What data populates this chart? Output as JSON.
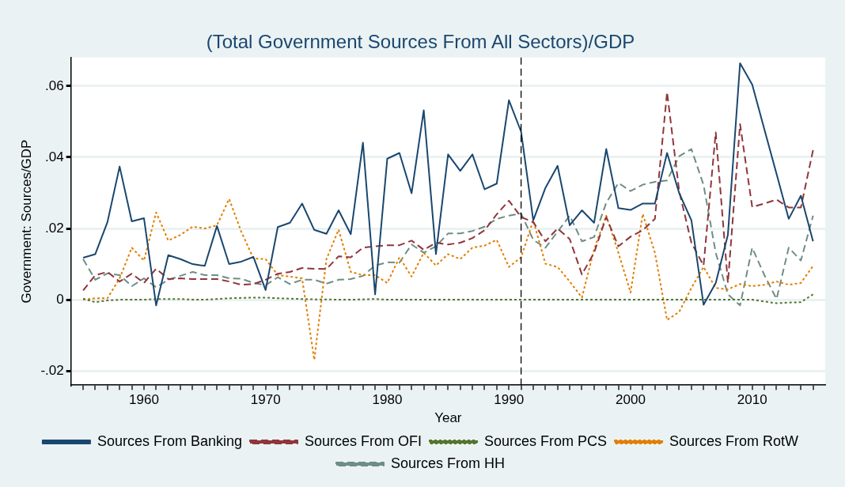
{
  "chart_data": {
    "type": "line",
    "title": "(Total Government Sources From All Sectors)/GDP",
    "xlabel": "Year",
    "ylabel": "Government: Sources/GDP",
    "x": [
      1955,
      1956,
      1957,
      1958,
      1959,
      1960,
      1961,
      1962,
      1963,
      1964,
      1965,
      1966,
      1967,
      1968,
      1969,
      1970,
      1971,
      1972,
      1973,
      1974,
      1975,
      1976,
      1977,
      1978,
      1979,
      1980,
      1981,
      1982,
      1983,
      1984,
      1985,
      1986,
      1987,
      1988,
      1989,
      1990,
      1991,
      1992,
      1993,
      1994,
      1995,
      1996,
      1997,
      1998,
      1999,
      2000,
      2001,
      2002,
      2003,
      2004,
      2005,
      2006,
      2007,
      2008,
      2009,
      2010,
      2011,
      2012,
      2013,
      2014,
      2015
    ],
    "series": [
      {
        "name": "Sources From Banking",
        "color": "#1a476f",
        "line_style": "solid",
        "values": [
          0.0118,
          0.0128,
          0.0218,
          0.0374,
          0.022,
          0.0229,
          -0.0016,
          0.0125,
          0.0114,
          0.01,
          0.0095,
          0.0207,
          0.01,
          0.0107,
          0.012,
          0.0027,
          0.0204,
          0.0216,
          0.027,
          0.0196,
          0.0185,
          0.0251,
          0.0184,
          0.0441,
          0.0015,
          0.0396,
          0.0412,
          0.0299,
          0.0532,
          0.0128,
          0.0408,
          0.0362,
          0.0408,
          0.031,
          0.0326,
          0.056,
          0.0472,
          0.0223,
          0.0314,
          0.0376,
          0.0209,
          0.0251,
          0.0216,
          0.0423,
          0.0257,
          0.0252,
          0.027,
          0.027,
          0.0412,
          0.0299,
          0.0223,
          -0.0014,
          0.0047,
          0.0182,
          0.0664,
          0.0604,
          0.0478,
          0.0353,
          0.0227,
          0.0292,
          0.0164
        ]
      },
      {
        "name": "Sources From OFI",
        "color": "#90353b",
        "line_style": "dashed",
        "values": [
          0.0026,
          0.0069,
          0.0078,
          0.0051,
          0.0073,
          0.0047,
          0.0087,
          0.0058,
          0.006,
          0.0058,
          0.0058,
          0.0058,
          0.0051,
          0.0042,
          0.0044,
          0.0056,
          0.0073,
          0.0078,
          0.0089,
          0.0087,
          0.0086,
          0.0122,
          0.0119,
          0.0146,
          0.015,
          0.0153,
          0.0153,
          0.0166,
          0.014,
          0.016,
          0.0155,
          0.016,
          0.0173,
          0.0195,
          0.024,
          0.0278,
          0.0232,
          0.0218,
          0.0164,
          0.02,
          0.017,
          0.0071,
          0.0132,
          0.0232,
          0.015,
          0.0177,
          0.0195,
          0.0227,
          0.0583,
          0.0304,
          0.016,
          0.0096,
          0.047,
          0.0047,
          0.0493,
          0.026,
          0.027,
          0.0281,
          0.0259,
          0.0259,
          0.042
        ]
      },
      {
        "name": "Sources From PCS",
        "color": "#55752f",
        "line_style": "dotted",
        "values": [
          0.0003,
          -0.0007,
          -0.0002,
          0,
          0,
          0,
          0.0002,
          0.0002,
          0.0002,
          0,
          0,
          0.0002,
          0.0004,
          0.0005,
          0.0006,
          0.0006,
          0.0004,
          0.0003,
          0.0002,
          0.0001,
          0.0001,
          0,
          0,
          0.0001,
          0.0002,
          0,
          0,
          0,
          0,
          0,
          0,
          0,
          0,
          0,
          0,
          0,
          0,
          0,
          0,
          0,
          0,
          0,
          0,
          0,
          0,
          0,
          0,
          0,
          0,
          0,
          0,
          0,
          0,
          0,
          0,
          0,
          -0.0005,
          -0.001,
          -0.0008,
          -0.0007,
          0.0015
        ]
      },
      {
        "name": "Sources From RotW",
        "color": "#e37e00",
        "line_style": "dotted",
        "values": [
          0,
          0.0004,
          0.0004,
          0.006,
          0.0146,
          0.011,
          0.0245,
          0.0166,
          0.0182,
          0.0205,
          0.02,
          0.0209,
          0.0283,
          0.0191,
          0.0116,
          0.0114,
          0.0069,
          0.0065,
          0.006,
          -0.0169,
          0.0114,
          0.0197,
          0.0078,
          0.0069,
          0.0069,
          0.0047,
          0.0119,
          0.0065,
          0.0132,
          0.0096,
          0.0128,
          0.0114,
          0.0146,
          0.0152,
          0.0168,
          0.0092,
          0.0119,
          0.0223,
          0.0101,
          0.0092,
          0.0051,
          0.0006,
          0.0141,
          0.0236,
          0.0132,
          0.002,
          0.0241,
          0.0132,
          -0.0057,
          -0.0034,
          0.0033,
          0.0092,
          0.0033,
          0.0029,
          0.0044,
          0.0038,
          0.0042,
          0.0051,
          0.0042,
          0.0047,
          0.0095
        ]
      },
      {
        "name": "Sources From HH",
        "color": "#6e8e84",
        "line_style": "dashed",
        "values": [
          0.0114,
          0.0056,
          0.0074,
          0.0069,
          0.0038,
          0.006,
          0.0035,
          0.0056,
          0.0067,
          0.0078,
          0.0069,
          0.0069,
          0.006,
          0.0059,
          0.0047,
          0.0041,
          0.0063,
          0.0044,
          0.0056,
          0.0056,
          0.0045,
          0.0056,
          0.0058,
          0.0067,
          0.0096,
          0.0105,
          0.0104,
          0.0155,
          0.0132,
          0.015,
          0.0186,
          0.0186,
          0.0193,
          0.0205,
          0.0227,
          0.0236,
          0.0242,
          0.0168,
          0.0146,
          0.0191,
          0.0236,
          0.0164,
          0.0176,
          0.0272,
          0.0328,
          0.0305,
          0.0323,
          0.0331,
          0.0335,
          0.0403,
          0.0423,
          0.0322,
          0.0132,
          0.0015,
          -0.0016,
          0.0146,
          0.0069,
          0.0002,
          0.0146,
          0.011,
          0.0236
        ]
      }
    ],
    "xlim": [
      1954,
      2016
    ],
    "xticks": [
      {
        "value": 1955,
        "label": null
      },
      {
        "value": 1956,
        "label": null
      },
      {
        "value": 1957,
        "label": null
      },
      {
        "value": 1958,
        "label": null
      },
      {
        "value": 1959,
        "label": null
      },
      1960,
      {
        "value": 1961,
        "label": null
      },
      {
        "value": 1962,
        "label": null
      },
      {
        "value": 1963,
        "label": null
      },
      {
        "value": 1964,
        "label": null
      },
      {
        "value": 1965,
        "label": null
      },
      {
        "value": 1966,
        "label": null
      },
      {
        "value": 1967,
        "label": null
      },
      {
        "value": 1968,
        "label": null
      },
      {
        "value": 1969,
        "label": null
      },
      1970,
      {
        "value": 1971,
        "label": null
      },
      {
        "value": 1972,
        "label": null
      },
      {
        "value": 1973,
        "label": null
      },
      {
        "value": 1974,
        "label": null
      },
      {
        "value": 1975,
        "label": null
      },
      {
        "value": 1976,
        "label": null
      },
      {
        "value": 1977,
        "label": null
      },
      {
        "value": 1978,
        "label": null
      },
      {
        "value": 1979,
        "label": null
      },
      1980,
      {
        "value": 1981,
        "label": null
      },
      {
        "value": 1982,
        "label": null
      },
      {
        "value": 1983,
        "label": null
      },
      {
        "value": 1984,
        "label": null
      },
      {
        "value": 1985,
        "label": null
      },
      {
        "value": 1986,
        "label": null
      },
      {
        "value": 1987,
        "label": null
      },
      {
        "value": 1988,
        "label": null
      },
      {
        "value": 1989,
        "label": null
      },
      1990,
      {
        "value": 1991,
        "label": null
      },
      {
        "value": 1992,
        "label": null
      },
      {
        "value": 1993,
        "label": null
      },
      {
        "value": 1994,
        "label": null
      },
      {
        "value": 1995,
        "label": null
      },
      {
        "value": 1996,
        "label": null
      },
      {
        "value": 1997,
        "label": null
      },
      {
        "value": 1998,
        "label": null
      },
      {
        "value": 1999,
        "label": null
      },
      2000,
      {
        "value": 2001,
        "label": null
      },
      {
        "value": 2002,
        "label": null
      },
      {
        "value": 2003,
        "label": null
      },
      {
        "value": 2004,
        "label": null
      },
      {
        "value": 2005,
        "label": null
      },
      {
        "value": 2006,
        "label": null
      },
      {
        "value": 2007,
        "label": null
      },
      {
        "value": 2008,
        "label": null
      },
      {
        "value": 2009,
        "label": null
      },
      2010,
      {
        "value": 2011,
        "label": null
      },
      {
        "value": 2012,
        "label": null
      },
      {
        "value": 2013,
        "label": null
      },
      {
        "value": 2014,
        "label": null
      },
      {
        "value": 2015,
        "label": null
      }
    ],
    "ylim": [
      -0.024,
      0.068
    ],
    "yticks": [
      {
        "value": -0.02,
        "label": "-.02"
      },
      0,
      {
        "value": 0.02,
        "label": ".02"
      },
      {
        "value": 0.04,
        "label": ".04"
      },
      {
        "value": 0.06,
        "label": ".06"
      }
    ],
    "grid": "y",
    "legend": "bottom",
    "marker": "none",
    "ref_lines": [
      {
        "axis": "x",
        "value": 1991,
        "color": "#000000",
        "line_style": "dashed"
      }
    ]
  }
}
